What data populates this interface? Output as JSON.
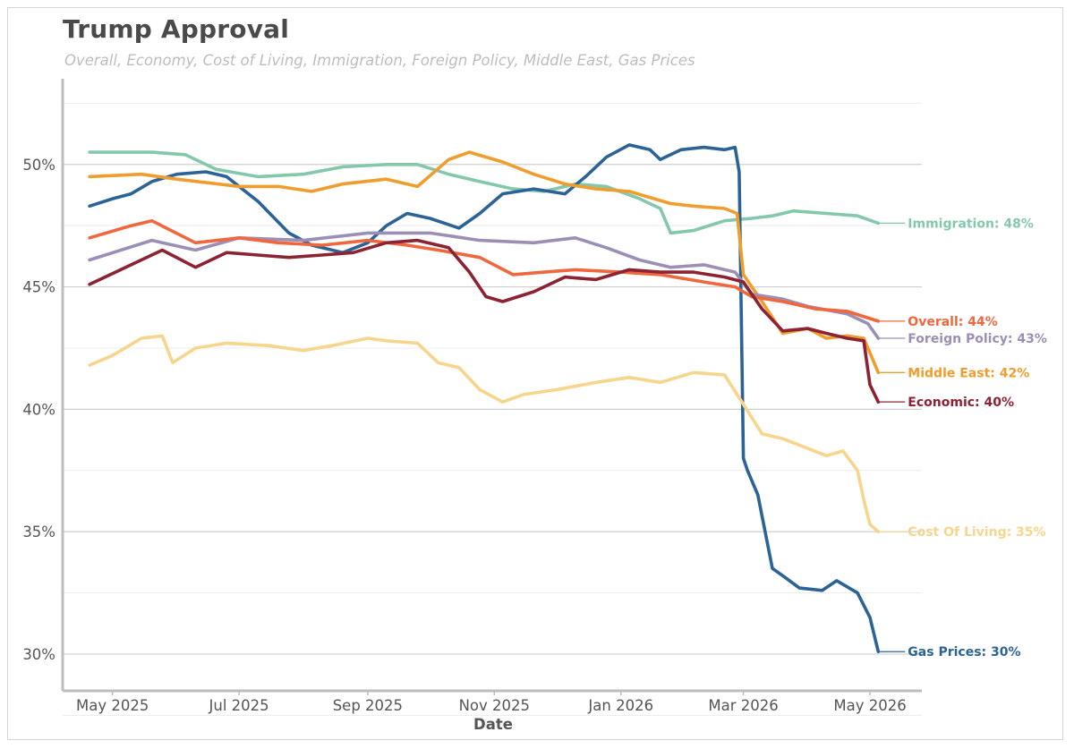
{
  "chart_data": {
    "type": "line",
    "title": "Trump Approval",
    "subtitle": "Overall, Economy, Cost of Living, Immigration, Foreign Policy, Middle East, Gas Prices",
    "xlabel": "Date",
    "ylabel": "",
    "ylim": [
      28.5,
      53.5
    ],
    "xlim": [
      "2025-04-07",
      "2026-05-26"
    ],
    "x_ticks": [
      "2025-05-01",
      "2025-07-01",
      "2025-09-01",
      "2025-11-01",
      "2026-01-01",
      "2026-03-01",
      "2026-05-01"
    ],
    "x_tick_labels": [
      "May 2025",
      "Jul 2025",
      "Sep 2025",
      "Nov 2025",
      "Jan 2026",
      "Mar 2026",
      "May 2026"
    ],
    "y_ticks": [
      30,
      35,
      40,
      45,
      50
    ],
    "y_tick_labels": [
      "30%",
      "35%",
      "40%",
      "45%",
      "50%"
    ],
    "grid": "horizontal",
    "series": [
      {
        "name": "Immigration",
        "label": "Immigration: 48%",
        "color": "#84c8ac",
        "x": [
          "2025-04-20",
          "2025-05-20",
          "2025-06-05",
          "2025-06-20",
          "2025-07-10",
          "2025-08-01",
          "2025-08-20",
          "2025-09-10",
          "2025-09-25",
          "2025-10-10",
          "2025-10-25",
          "2025-11-10",
          "2025-11-25",
          "2025-12-10",
          "2025-12-25",
          "2026-01-10",
          "2026-01-20",
          "2026-01-25",
          "2026-02-05",
          "2026-02-20",
          "2026-03-05",
          "2026-03-15",
          "2026-03-25",
          "2026-04-10",
          "2026-04-25",
          "2026-05-05"
        ],
        "y": [
          50.5,
          50.5,
          50.4,
          49.8,
          49.5,
          49.6,
          49.9,
          50.0,
          50.0,
          49.6,
          49.3,
          49.0,
          48.9,
          49.2,
          49.1,
          48.6,
          48.2,
          47.2,
          47.3,
          47.7,
          47.8,
          47.9,
          48.1,
          48.0,
          47.9,
          47.6
        ]
      },
      {
        "name": "Gas Prices",
        "label": "Gas Prices: 30%",
        "color": "#2b6396",
        "x": [
          "2025-04-20",
          "2025-05-01",
          "2025-05-10",
          "2025-05-20",
          "2025-06-01",
          "2025-06-15",
          "2025-06-25",
          "2025-07-10",
          "2025-07-25",
          "2025-08-05",
          "2025-08-20",
          "2025-09-01",
          "2025-09-10",
          "2025-09-20",
          "2025-10-01",
          "2025-10-15",
          "2025-10-25",
          "2025-11-05",
          "2025-11-20",
          "2025-12-05",
          "2025-12-15",
          "2025-12-25",
          "2026-01-05",
          "2026-01-15",
          "2026-01-20",
          "2026-01-30",
          "2026-02-10",
          "2026-02-20",
          "2026-02-25",
          "2026-02-27",
          "2026-03-01",
          "2026-03-03",
          "2026-03-08",
          "2026-03-15",
          "2026-03-20",
          "2026-03-28",
          "2026-04-08",
          "2026-04-15",
          "2026-04-25",
          "2026-05-01",
          "2026-05-05"
        ],
        "y": [
          48.3,
          48.6,
          48.8,
          49.3,
          49.6,
          49.7,
          49.5,
          48.5,
          47.2,
          46.7,
          46.4,
          46.8,
          47.5,
          48.0,
          47.8,
          47.4,
          48.0,
          48.8,
          49.0,
          48.8,
          49.5,
          50.3,
          50.8,
          50.6,
          50.2,
          50.6,
          50.7,
          50.6,
          50.7,
          49.7,
          38.0,
          37.5,
          36.5,
          33.5,
          33.2,
          32.7,
          32.6,
          33.0,
          32.5,
          31.5,
          30.1
        ]
      },
      {
        "name": "Middle East",
        "label": "Middle East: 42%",
        "color": "#ef9d2d",
        "x": [
          "2025-04-20",
          "2025-05-15",
          "2025-06-01",
          "2025-07-01",
          "2025-07-20",
          "2025-08-05",
          "2025-08-20",
          "2025-09-10",
          "2025-09-25",
          "2025-10-10",
          "2025-10-20",
          "2025-11-05",
          "2025-11-20",
          "2025-12-05",
          "2025-12-20",
          "2026-01-05",
          "2026-01-25",
          "2026-02-05",
          "2026-02-20",
          "2026-02-26",
          "2026-03-01",
          "2026-03-10",
          "2026-03-20",
          "2026-04-01",
          "2026-04-10",
          "2026-04-20",
          "2026-04-28",
          "2026-05-05"
        ],
        "y": [
          49.5,
          49.6,
          49.4,
          49.1,
          49.1,
          48.9,
          49.2,
          49.4,
          49.1,
          50.2,
          50.5,
          50.1,
          49.6,
          49.2,
          49.0,
          48.9,
          48.4,
          48.3,
          48.2,
          48.0,
          45.5,
          44.4,
          43.1,
          43.3,
          42.9,
          43.0,
          42.9,
          41.5
        ]
      },
      {
        "name": "Foreign Policy",
        "label": "Foreign Policy: 43%",
        "color": "#9b8fb5",
        "x": [
          "2025-04-20",
          "2025-05-20",
          "2025-06-10",
          "2025-07-01",
          "2025-08-01",
          "2025-09-01",
          "2025-10-01",
          "2025-10-25",
          "2025-11-20",
          "2025-12-10",
          "2025-12-25",
          "2026-01-10",
          "2026-01-25",
          "2026-02-10",
          "2026-02-25",
          "2026-03-05",
          "2026-03-20",
          "2026-04-01",
          "2026-04-20",
          "2026-04-30",
          "2026-05-05"
        ],
        "y": [
          46.1,
          46.9,
          46.5,
          47.0,
          46.9,
          47.2,
          47.2,
          46.9,
          46.8,
          47.0,
          46.6,
          46.1,
          45.8,
          45.9,
          45.6,
          44.7,
          44.5,
          44.2,
          43.9,
          43.5,
          42.9
        ]
      },
      {
        "name": "Overall",
        "label": "Overall: 44%",
        "color": "#f0673d",
        "x": [
          "2025-04-20",
          "2025-05-10",
          "2025-05-20",
          "2025-06-10",
          "2025-07-01",
          "2025-07-20",
          "2025-08-10",
          "2025-09-01",
          "2025-09-20",
          "2025-10-05",
          "2025-10-25",
          "2025-11-10",
          "2025-11-25",
          "2025-12-10",
          "2026-01-01",
          "2026-01-20",
          "2026-02-10",
          "2026-02-25",
          "2026-03-05",
          "2026-03-20",
          "2026-04-05",
          "2026-04-20",
          "2026-05-05"
        ],
        "y": [
          47.0,
          47.5,
          47.7,
          46.8,
          47.0,
          46.8,
          46.7,
          46.9,
          46.7,
          46.5,
          46.2,
          45.5,
          45.6,
          45.7,
          45.6,
          45.5,
          45.2,
          45.0,
          44.6,
          44.4,
          44.1,
          44.0,
          43.6
        ]
      },
      {
        "name": "Economic",
        "label": "Economic: 40%",
        "color": "#8b2333",
        "x": [
          "2025-04-20",
          "2025-05-10",
          "2025-05-25",
          "2025-06-10",
          "2025-06-25",
          "2025-07-10",
          "2025-07-25",
          "2025-08-10",
          "2025-08-25",
          "2025-09-10",
          "2025-09-25",
          "2025-10-10",
          "2025-10-20",
          "2025-10-28",
          "2025-11-05",
          "2025-11-20",
          "2025-12-05",
          "2025-12-20",
          "2026-01-05",
          "2026-01-20",
          "2026-02-05",
          "2026-02-20",
          "2026-03-01",
          "2026-03-10",
          "2026-03-20",
          "2026-04-01",
          "2026-04-10",
          "2026-04-20",
          "2026-04-28",
          "2026-05-01",
          "2026-05-05"
        ],
        "y": [
          45.1,
          45.9,
          46.5,
          45.8,
          46.4,
          46.3,
          46.2,
          46.3,
          46.4,
          46.8,
          46.9,
          46.6,
          45.6,
          44.6,
          44.4,
          44.8,
          45.4,
          45.3,
          45.7,
          45.6,
          45.6,
          45.4,
          45.2,
          44.1,
          43.2,
          43.3,
          43.1,
          42.9,
          42.8,
          41.0,
          40.3
        ]
      },
      {
        "name": "Cost Of Living",
        "label": "Cost Of Living: 35%",
        "color": "#f6d58c",
        "x": [
          "2025-04-20",
          "2025-05-01",
          "2025-05-15",
          "2025-05-25",
          "2025-05-30",
          "2025-06-10",
          "2025-06-25",
          "2025-07-15",
          "2025-08-01",
          "2025-08-15",
          "2025-09-01",
          "2025-09-10",
          "2025-09-25",
          "2025-10-05",
          "2025-10-15",
          "2025-10-25",
          "2025-11-05",
          "2025-11-15",
          "2025-12-01",
          "2025-12-20",
          "2026-01-05",
          "2026-01-20",
          "2026-02-05",
          "2026-02-20",
          "2026-03-01",
          "2026-03-10",
          "2026-03-20",
          "2026-04-01",
          "2026-04-10",
          "2026-04-18",
          "2026-04-25",
          "2026-04-28",
          "2026-05-01",
          "2026-05-05"
        ],
        "y": [
          41.8,
          42.2,
          42.9,
          43.0,
          41.9,
          42.5,
          42.7,
          42.6,
          42.4,
          42.6,
          42.9,
          42.8,
          42.7,
          41.9,
          41.7,
          40.8,
          40.3,
          40.6,
          40.8,
          41.1,
          41.3,
          41.1,
          41.5,
          41.4,
          40.2,
          39.0,
          38.8,
          38.4,
          38.1,
          38.3,
          37.5,
          36.3,
          35.3,
          35.0
        ]
      }
    ],
    "end_labels": [
      {
        "series": "Immigration",
        "text": "Immigration: 48%"
      },
      {
        "series": "Overall",
        "text": "Overall: 44%"
      },
      {
        "series": "Foreign Policy",
        "text": "Foreign Policy: 43%"
      },
      {
        "series": "Middle East",
        "text": "Middle East: 42%"
      },
      {
        "series": "Economic",
        "text": "Economic: 40%"
      },
      {
        "series": "Cost Of Living",
        "text": "Cost Of Living: 35%"
      },
      {
        "series": "Gas Prices",
        "text": "Gas Prices: 30%"
      }
    ]
  },
  "colors": {
    "grid": "#d9d9d9",
    "axis": "#bdbdbd",
    "text": "#555555"
  }
}
